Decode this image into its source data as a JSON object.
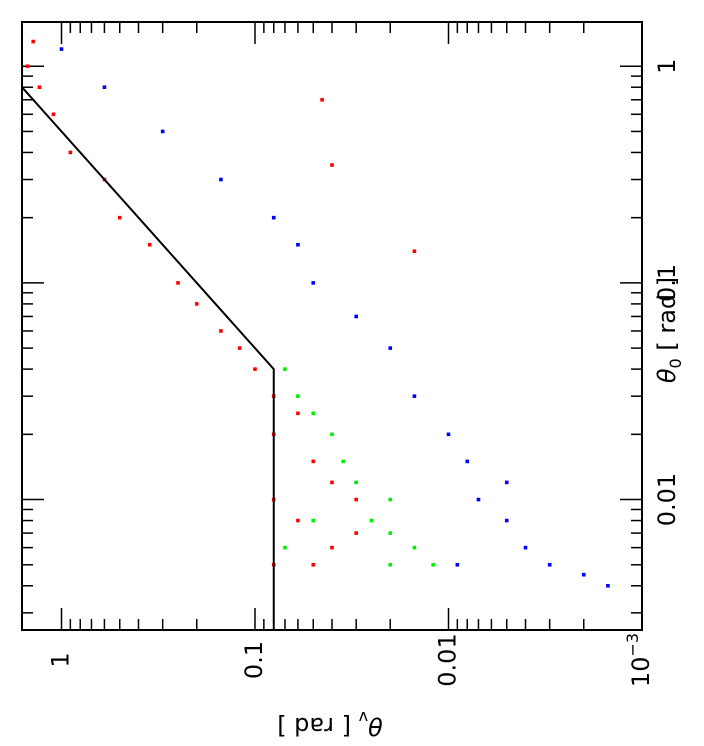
{
  "chart_data": {
    "type": "scatter",
    "title": "",
    "orientation": "rotated 90 degrees counter-clockwise",
    "xaxis": {
      "label_symbol": "θ",
      "label_sub": "0",
      "label_unit": "[ rad ]",
      "scale": "log",
      "range": [
        0.0025,
        1.6
      ],
      "tick_labels": [
        {
          "value": 0.01,
          "text": "0.01"
        },
        {
          "value": 0.1,
          "text": "0.1"
        },
        {
          "value": 1,
          "text": "1"
        }
      ]
    },
    "yaxis": {
      "label_symbol": "θ",
      "label_sub": "v",
      "label_unit": "[ rad ]",
      "scale": "log",
      "range": [
        0.001,
        1.6
      ],
      "tick_labels": [
        {
          "value": 0.001,
          "text": "10",
          "sup": "−3"
        },
        {
          "value": 0.01,
          "text": "0.01"
        },
        {
          "value": 0.1,
          "text": "0.1"
        },
        {
          "value": 1,
          "text": "1"
        }
      ]
    },
    "boundary_line": {
      "color": "#000000",
      "points": [
        [
          0.0025,
          0.08
        ],
        [
          0.0045,
          0.08
        ],
        [
          0.04,
          0.08
        ],
        [
          0.8,
          1.6
        ]
      ]
    },
    "series": [
      {
        "color": "#ff0000",
        "values": [
          [
            0.005,
            0.08
          ],
          [
            0.005,
            0.05
          ],
          [
            0.006,
            0.04
          ],
          [
            0.007,
            0.03
          ],
          [
            0.008,
            0.06
          ],
          [
            0.01,
            0.08
          ],
          [
            0.01,
            0.03
          ],
          [
            0.012,
            0.04
          ],
          [
            0.015,
            0.05
          ],
          [
            0.02,
            0.08
          ],
          [
            0.025,
            0.06
          ],
          [
            0.03,
            0.08
          ],
          [
            0.04,
            0.1
          ],
          [
            0.05,
            0.12
          ],
          [
            0.06,
            0.15
          ],
          [
            0.08,
            0.2
          ],
          [
            0.1,
            0.25
          ],
          [
            0.15,
            0.35
          ],
          [
            0.2,
            0.5
          ],
          [
            0.3,
            0.6
          ],
          [
            0.4,
            0.9
          ],
          [
            0.6,
            1.1
          ],
          [
            0.8,
            1.3
          ],
          [
            1.0,
            1.5
          ],
          [
            1.3,
            1.4
          ],
          [
            0.14,
            0.015
          ],
          [
            0.7,
            0.045
          ],
          [
            0.35,
            0.04
          ]
        ]
      },
      {
        "color": "#0000ff",
        "values": [
          [
            0.005,
            0.009
          ],
          [
            0.005,
            0.003
          ],
          [
            0.006,
            0.004
          ],
          [
            0.008,
            0.005
          ],
          [
            0.01,
            0.007
          ],
          [
            0.012,
            0.005
          ],
          [
            0.015,
            0.008
          ],
          [
            0.02,
            0.01
          ],
          [
            0.03,
            0.015
          ],
          [
            0.05,
            0.02
          ],
          [
            0.07,
            0.03
          ],
          [
            0.1,
            0.05
          ],
          [
            0.15,
            0.06
          ],
          [
            0.2,
            0.08
          ],
          [
            0.3,
            0.15
          ],
          [
            0.5,
            0.3
          ],
          [
            0.8,
            0.6
          ],
          [
            1.2,
            1.0
          ],
          [
            0.004,
            0.0015
          ],
          [
            0.0045,
            0.002
          ]
        ]
      },
      {
        "color": "#00ee00",
        "values": [
          [
            0.005,
            0.02
          ],
          [
            0.005,
            0.012
          ],
          [
            0.006,
            0.015
          ],
          [
            0.007,
            0.02
          ],
          [
            0.008,
            0.025
          ],
          [
            0.01,
            0.02
          ],
          [
            0.012,
            0.03
          ],
          [
            0.015,
            0.035
          ],
          [
            0.02,
            0.04
          ],
          [
            0.025,
            0.05
          ],
          [
            0.03,
            0.06
          ],
          [
            0.04,
            0.07
          ],
          [
            0.006,
            0.07
          ],
          [
            0.008,
            0.05
          ]
        ]
      }
    ]
  }
}
